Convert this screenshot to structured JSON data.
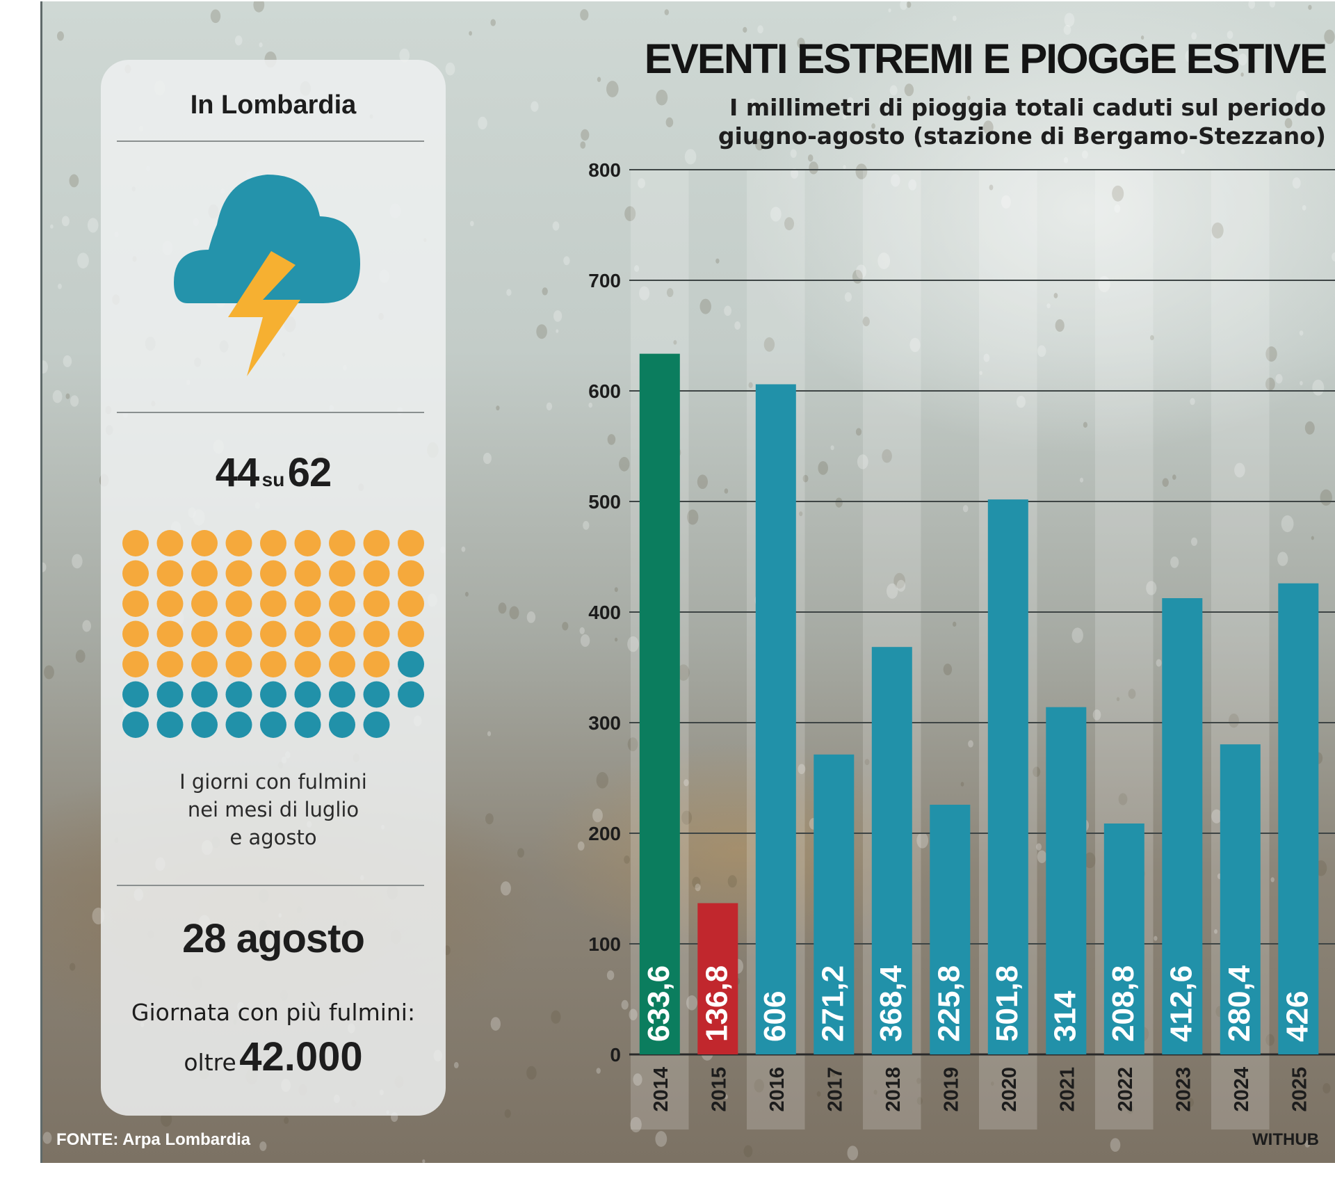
{
  "left_panel": {
    "region": "In Lombardia",
    "days_with_lightning": 44,
    "su": "su",
    "total_days": 62,
    "days_caption": [
      "I giorni con fulmini",
      "nei mesi di luglio",
      "e agosto"
    ],
    "peak_date": "28 agosto",
    "peak_caption": "Giornata con più fulmini:",
    "peak_prefix": "oltre",
    "peak_value": "42.000",
    "icon": "thunderstorm-cloud-icon",
    "colors": {
      "lightning_day": "#f5a93c",
      "other_day": "#2191a9",
      "cloud": "#2493ab",
      "bolt": "#f6b031"
    }
  },
  "source": "FONTE: Arpa Lombardia",
  "credit": "WITHUB",
  "chart_data": {
    "type": "bar",
    "title": "EVENTI ESTREMI E PIOGGE ESTIVE",
    "subtitle": [
      "I millimetri di pioggia totali caduti sul periodo",
      "giugno-agosto (stazione di Bergamo-Stezzano)"
    ],
    "categories": [
      "2014",
      "2015",
      "2016",
      "2017",
      "2018",
      "2019",
      "2020",
      "2021",
      "2022",
      "2023",
      "2024",
      "2025"
    ],
    "values": [
      633.6,
      136.8,
      606,
      271.2,
      368.4,
      225.8,
      501.8,
      314,
      208.8,
      412.6,
      280.4,
      426
    ],
    "labels": [
      "633,6",
      "136,8",
      "606",
      "271,2",
      "368,4",
      "225,8",
      "501,8",
      "314",
      "208,8",
      "412,6",
      "280,4",
      "426"
    ],
    "yticks": [
      "0",
      "100",
      "200",
      "300",
      "400",
      "500",
      "600",
      "700",
      "800"
    ],
    "ylim": [
      0,
      800
    ],
    "xlabel": "",
    "ylabel": "",
    "grid": true,
    "colors": {
      "default": "#2191a9",
      "max": "#0b7d5e",
      "min": "#c1272d"
    }
  }
}
